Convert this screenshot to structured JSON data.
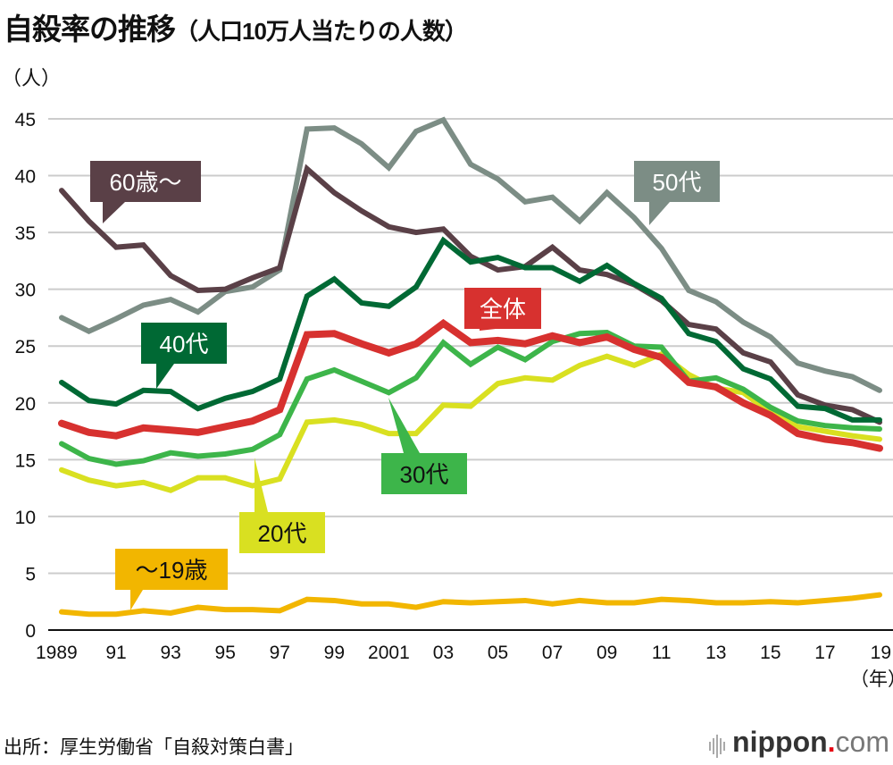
{
  "header": {
    "title_main": "自殺率の推移",
    "title_sub": "（人口10万人当たりの人数）",
    "unit_label": "（人）",
    "year_unit": "（年）"
  },
  "footer": {
    "source": "出所：厚生労働省「自殺対策白書」",
    "logo_brand": "nippon",
    "logo_dot": ".",
    "logo_tld": "com"
  },
  "chart_data": {
    "type": "line",
    "title": "自殺率の推移（人口10万人当たりの人数）",
    "xlabel": "（年）",
    "ylabel": "（人）",
    "ylim": [
      0,
      45
    ],
    "yticks": [
      0,
      5,
      10,
      15,
      20,
      25,
      30,
      35,
      40,
      45
    ],
    "grid": true,
    "x": [
      1989,
      1990,
      1991,
      1992,
      1993,
      1994,
      1995,
      1996,
      1997,
      1998,
      1999,
      2000,
      2001,
      2002,
      2003,
      2004,
      2005,
      2006,
      2007,
      2008,
      2009,
      2010,
      2011,
      2012,
      2013,
      2014,
      2015,
      2016,
      2017,
      2018,
      2019
    ],
    "xtick_years": [
      1989,
      1991,
      1993,
      1995,
      1997,
      1999,
      2001,
      2003,
      2005,
      2007,
      2009,
      2011,
      2013,
      2015,
      2017,
      2019
    ],
    "xtick_labels": [
      "1989",
      "91",
      "93",
      "95",
      "97",
      "99",
      "2001",
      "03",
      "05",
      "07",
      "09",
      "11",
      "13",
      "15",
      "17",
      "19"
    ],
    "series": [
      {
        "name": "50代",
        "color": "#7c8d85",
        "label_color": "#ffffff",
        "values": [
          27.5,
          26.3,
          27.4,
          28.6,
          29.1,
          28.0,
          29.8,
          30.2,
          31.7,
          44.1,
          44.2,
          42.8,
          40.7,
          43.9,
          44.9,
          41.0,
          39.7,
          37.7,
          38.1,
          36.0,
          38.5,
          36.3,
          33.6,
          29.9,
          28.9,
          27.1,
          25.8,
          23.5,
          22.8,
          22.3,
          21.1
        ]
      },
      {
        "name": "60歳〜",
        "color": "#5a4047",
        "label_color": "#ffffff",
        "values": [
          38.7,
          36.0,
          33.7,
          33.9,
          31.2,
          29.9,
          30.0,
          31.0,
          31.9,
          40.6,
          38.5,
          36.9,
          35.5,
          35.0,
          35.3,
          32.9,
          31.7,
          32.0,
          33.7,
          31.7,
          31.3,
          30.4,
          29.0,
          26.9,
          26.5,
          24.4,
          23.6,
          20.7,
          19.8,
          19.4,
          18.3
        ]
      },
      {
        "name": "40代",
        "color": "#006934",
        "label_color": "#ffffff",
        "values": [
          21.8,
          20.2,
          19.9,
          21.1,
          21.0,
          19.5,
          20.4,
          21.0,
          22.1,
          29.4,
          30.9,
          28.8,
          28.5,
          30.2,
          34.3,
          32.4,
          32.8,
          31.9,
          31.9,
          30.7,
          32.1,
          30.5,
          29.2,
          26.1,
          25.4,
          23.0,
          22.1,
          19.7,
          19.5,
          18.5,
          18.5
        ]
      },
      {
        "name": "20代",
        "color": "#d9e021",
        "label_color": "#111111",
        "values": [
          14.1,
          13.2,
          12.7,
          13.0,
          12.3,
          13.4,
          13.4,
          12.7,
          13.3,
          18.3,
          18.5,
          18.1,
          17.3,
          17.3,
          19.8,
          19.7,
          21.7,
          22.2,
          22.0,
          23.3,
          24.1,
          23.3,
          24.3,
          22.5,
          21.3,
          20.9,
          19.1,
          17.9,
          17.5,
          17.1,
          16.8
        ]
      },
      {
        "name": "30代",
        "color": "#3db54a",
        "label_color": "#111111",
        "values": [
          16.4,
          15.1,
          14.6,
          14.9,
          15.6,
          15.3,
          15.5,
          15.9,
          17.2,
          22.1,
          22.9,
          21.9,
          20.9,
          22.2,
          25.3,
          23.4,
          24.9,
          23.8,
          25.4,
          26.1,
          26.2,
          25.0,
          24.9,
          21.9,
          22.2,
          21.2,
          19.6,
          18.4,
          18.0,
          17.8,
          17.7
        ]
      },
      {
        "name": "全体",
        "color": "#d7312f",
        "label_color": "#ffffff",
        "values": [
          18.2,
          17.4,
          17.1,
          17.8,
          17.6,
          17.4,
          17.9,
          18.4,
          19.4,
          26.0,
          26.1,
          25.2,
          24.4,
          25.2,
          27.0,
          25.3,
          25.5,
          25.2,
          25.9,
          25.3,
          25.8,
          24.7,
          24.0,
          21.8,
          21.4,
          20.0,
          18.9,
          17.3,
          16.8,
          16.5,
          16.0
        ]
      },
      {
        "name": "〜19歳",
        "color": "#f2b600",
        "label_color": "#111111",
        "values": [
          1.6,
          1.4,
          1.4,
          1.7,
          1.5,
          2.0,
          1.8,
          1.8,
          1.7,
          2.7,
          2.6,
          2.3,
          2.3,
          2.0,
          2.5,
          2.4,
          2.5,
          2.6,
          2.3,
          2.6,
          2.4,
          2.4,
          2.7,
          2.6,
          2.4,
          2.4,
          2.5,
          2.4,
          2.6,
          2.8,
          3.1
        ]
      }
    ],
    "annotations": [
      {
        "series": "60歳〜",
        "text": "60歳〜",
        "year": 1991
      },
      {
        "series": "50代",
        "text": "50代",
        "year": 2010.5
      },
      {
        "series": "40代",
        "text": "40代",
        "year": 1992.6
      },
      {
        "series": "全体",
        "text": "全体",
        "year": 2004.6
      },
      {
        "series": "30代",
        "text": "30代",
        "year": 2001
      },
      {
        "series": "20代",
        "text": "20代",
        "year": 1996.1
      },
      {
        "series": "〜19歳",
        "text": "〜19歳",
        "year": 1991.5
      }
    ]
  }
}
